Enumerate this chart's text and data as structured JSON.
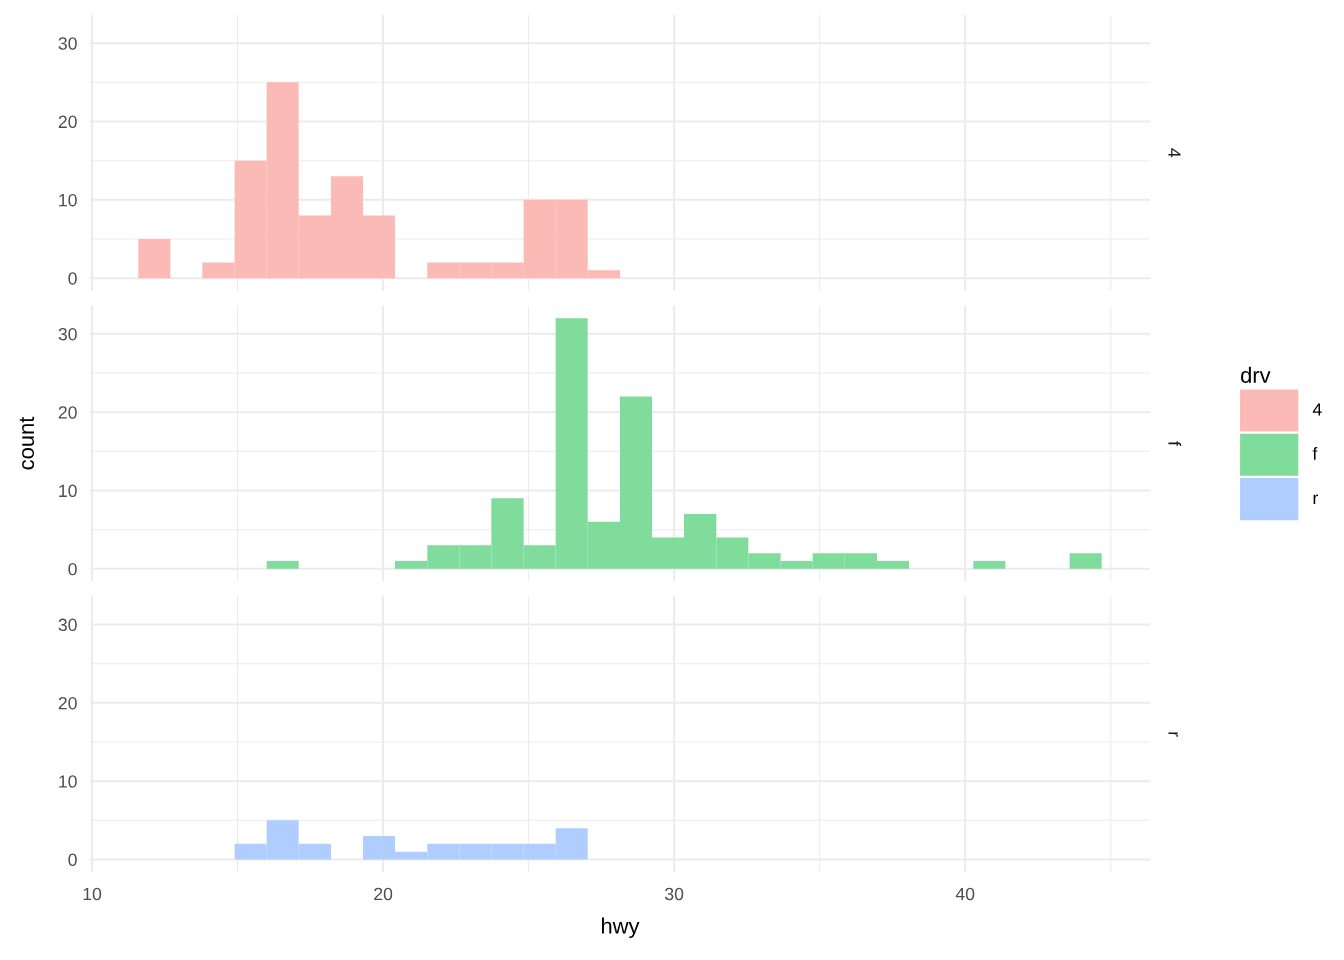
{
  "chart_data": [
    {
      "type": "histogram",
      "bins": [
        11.59,
        12.69,
        13.79,
        14.9,
        16.0,
        17.1,
        18.21,
        19.31,
        20.41,
        21.52,
        22.62,
        23.72,
        24.83,
        25.93,
        27.03,
        28.14,
        29.24,
        30.34,
        31.45,
        32.55,
        33.66,
        34.76,
        35.86,
        36.97,
        38.07,
        39.17,
        40.28,
        41.38,
        42.48,
        43.59,
        44.69
      ],
      "series": [
        {
          "name": "4",
          "color": "#fbbab6",
          "values": [
            5,
            0,
            2,
            15,
            25,
            8,
            13,
            8,
            0,
            2,
            2,
            2,
            10,
            10,
            1,
            0,
            0,
            0,
            0,
            0,
            0,
            0,
            0,
            0,
            0,
            0,
            0,
            0,
            0,
            0
          ]
        }
      ],
      "xlim": [
        9.93,
        46.35
      ],
      "xticks": [
        10,
        {
          "value": 15,
          "label": null
        },
        20,
        {
          "value": 25,
          "label": null
        },
        30,
        {
          "value": 35,
          "label": null
        },
        40,
        {
          "value": 45,
          "label": null
        }
      ],
      "ylim": [
        -1.6,
        33.6
      ],
      "yticks": [
        0,
        {
          "value": 5,
          "label": null
        },
        10,
        {
          "value": 15,
          "label": null
        },
        20,
        {
          "value": 25,
          "label": null
        },
        30
      ],
      "grid": true,
      "tick_labels": "y"
    },
    {
      "type": "histogram",
      "ylabel": "count",
      "legend": "right",
      "legend_title": "drv",
      "bins": [
        11.59,
        12.69,
        13.79,
        14.9,
        16.0,
        17.1,
        18.21,
        19.31,
        20.41,
        21.52,
        22.62,
        23.72,
        24.83,
        25.93,
        27.03,
        28.14,
        29.24,
        30.34,
        31.45,
        32.55,
        33.66,
        34.76,
        35.86,
        36.97,
        38.07,
        39.17,
        40.28,
        41.38,
        42.48,
        43.59,
        44.69
      ],
      "series": [
        {
          "name": "f",
          "color": "#7fdc9b",
          "values": [
            0,
            0,
            0,
            0,
            1,
            0,
            0,
            0,
            1,
            3,
            3,
            9,
            3,
            32,
            6,
            22,
            4,
            7,
            4,
            2,
            1,
            2,
            2,
            1,
            0,
            0,
            1,
            0,
            0,
            2
          ]
        }
      ],
      "xlim": [
        9.93,
        46.35
      ],
      "xticks": [
        10,
        {
          "value": 15,
          "label": null
        },
        20,
        {
          "value": 25,
          "label": null
        },
        30,
        {
          "value": 35,
          "label": null
        },
        40,
        {
          "value": 45,
          "label": null
        }
      ],
      "ylim": [
        -1.6,
        33.6
      ],
      "yticks": [
        0,
        {
          "value": 5,
          "label": null
        },
        10,
        {
          "value": 15,
          "label": null
        },
        20,
        {
          "value": 25,
          "label": null
        },
        30
      ],
      "grid": true,
      "tick_labels": "y"
    },
    {
      "type": "histogram",
      "xlabel": "hwy",
      "bins": [
        11.59,
        12.69,
        13.79,
        14.9,
        16.0,
        17.1,
        18.21,
        19.31,
        20.41,
        21.52,
        22.62,
        23.72,
        24.83,
        25.93,
        27.03,
        28.14,
        29.24,
        30.34,
        31.45,
        32.55,
        33.66,
        34.76,
        35.86,
        36.97,
        38.07,
        39.17,
        40.28,
        41.38,
        42.48,
        43.59,
        44.69
      ],
      "series": [
        {
          "name": "r",
          "color": "#b0cdff",
          "values": [
            0,
            0,
            0,
            2,
            5,
            2,
            0,
            3,
            1,
            2,
            2,
            2,
            2,
            4,
            0,
            0,
            0,
            0,
            0,
            0,
            0,
            0,
            0,
            0,
            0,
            0,
            0,
            0,
            0,
            0
          ]
        }
      ],
      "xlim": [
        9.93,
        46.35
      ],
      "xticks": [
        10,
        {
          "value": 15,
          "label": null
        },
        20,
        {
          "value": 25,
          "label": null
        },
        30,
        {
          "value": 35,
          "label": null
        },
        40,
        {
          "value": 45,
          "label": null
        }
      ],
      "ylim": [
        -1.6,
        33.6
      ],
      "yticks": [
        0,
        {
          "value": 5,
          "label": null
        },
        10,
        {
          "value": 15,
          "label": null
        },
        20,
        {
          "value": 25,
          "label": null
        },
        30
      ],
      "grid": true
    }
  ]
}
